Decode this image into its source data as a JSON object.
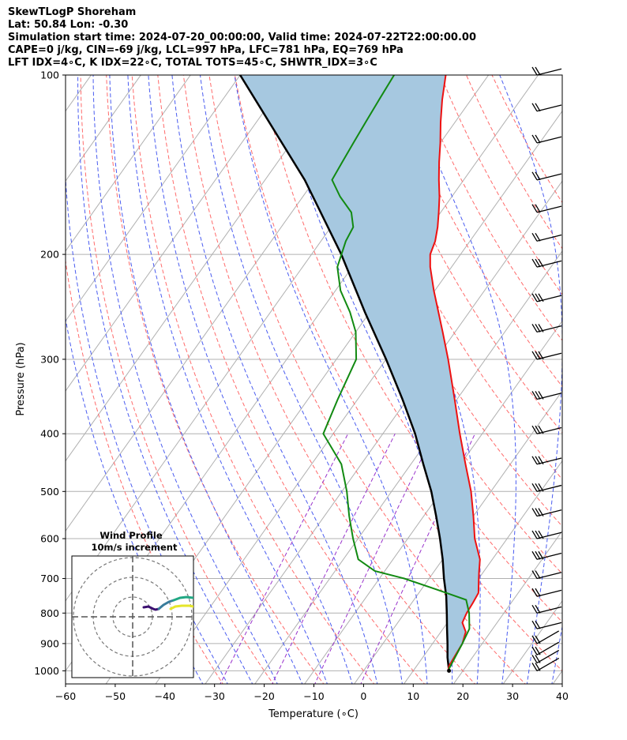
{
  "header": {
    "line1": "SkewTLogP Shoreham",
    "line2": "Lat: 50.84   Lon: -0.30",
    "line3": "Simulation start time: 2024-07-20_00:00:00, Valid time: 2024-07-22T22:00:00.00",
    "line4": "CAPE=0 j/kg, CIN=-69 j/kg, LCL=997 hPa, LFC=781 hPa, EQ=769 hPa",
    "line5": "LFT IDX=4∘C, K IDX=22∘C, TOTAL TOTS=45∘C, SHWTR_IDX=3∘C"
  },
  "chart_data": {
    "type": "skew-t",
    "xlabel": "Temperature (∘C)",
    "ylabel": "Pressure (hPa)",
    "xlim": [
      -60,
      40
    ],
    "ylim": [
      1050,
      100
    ],
    "y_scale": "log",
    "x_ticks": [
      -60,
      -50,
      -40,
      -30,
      -20,
      -10,
      0,
      10,
      20,
      30,
      40
    ],
    "x_tick_labels": [
      "−60",
      "−50",
      "−40",
      "−30",
      "−20",
      "−10",
      "0",
      "10",
      "20",
      "30",
      "40"
    ],
    "y_ticks": [
      100,
      200,
      300,
      400,
      500,
      600,
      700,
      800,
      900,
      1000
    ],
    "grid": true,
    "colors": {
      "temperature": "#ee1111",
      "dewpoint": "#128a12",
      "parcel": "#000000",
      "cape_fill": "#a6c8e0",
      "dry_adiabat": "#ff6b6b",
      "moist_adiabat": "#4a5cf0",
      "mixing_ratio": "#9933cc",
      "isotherm": "#b0b0b0"
    },
    "temperature_profile": {
      "pressure": [
        1000,
        980,
        950,
        900,
        860,
        830,
        800,
        770,
        740,
        700,
        680,
        650,
        600,
        550,
        500,
        450,
        400,
        350,
        300,
        270,
        250,
        230,
        210,
        200,
        190,
        180,
        170,
        160,
        150,
        140,
        130,
        120,
        110,
        100
      ],
      "temperature": [
        17.0,
        16.5,
        16.3,
        16.0,
        15.0,
        13.0,
        12.5,
        12.3,
        12.0,
        10.0,
        9.0,
        7.5,
        3.5,
        0.0,
        -4.0,
        -9.0,
        -14.5,
        -20.5,
        -27.5,
        -32.5,
        -36.2,
        -40.2,
        -44.3,
        -46.1,
        -47.0,
        -48.5,
        -50.4,
        -52.5,
        -55.0,
        -57.5,
        -60.0,
        -62.9,
        -65.8,
        -68.6
      ]
    },
    "dewpoint_profile": {
      "pressure": [
        1000,
        950,
        900,
        850,
        800,
        760,
        730,
        700,
        680,
        650,
        600,
        550,
        500,
        450,
        400,
        350,
        300,
        270,
        250,
        230,
        210,
        190,
        180,
        170,
        160,
        150,
        140,
        130,
        120,
        110,
        100
      ],
      "dewpoint": [
        17.0,
        16.5,
        16.0,
        15.3,
        13.0,
        10.5,
        3.0,
        -5.0,
        -12.0,
        -17.0,
        -21.0,
        -25.0,
        -29.0,
        -34.0,
        -42.0,
        -44.0,
        -46.0,
        -50.0,
        -54.0,
        -59.0,
        -63.0,
        -65.0,
        -65.5,
        -68.0,
        -72.5,
        -76.5,
        -77.0,
        -77.5,
        -78.0,
        -78.5,
        -79.0
      ]
    },
    "parcel_profile": {
      "pressure": [
        1000,
        950,
        900,
        850,
        800,
        750,
        700,
        650,
        600,
        550,
        500,
        450,
        400,
        350,
        300,
        250,
        200,
        150,
        100
      ],
      "temperature": [
        17.2,
        15.0,
        13.0,
        10.8,
        8.5,
        6.0,
        3.0,
        0.0,
        -3.5,
        -7.5,
        -12.0,
        -17.5,
        -23.5,
        -31.0,
        -40.0,
        -51.0,
        -64.0,
        -82.0,
        -110.0
      ]
    },
    "wind_barbs": {
      "pressure": [
        1000,
        970,
        940,
        900,
        850,
        800,
        750,
        700,
        650,
        600,
        550,
        500,
        450,
        400,
        350,
        300,
        270,
        240,
        210,
        190,
        170,
        150,
        130,
        115,
        100
      ],
      "note": "barbs plotted at right edge"
    },
    "inset": {
      "title_line1": "Wind Profile",
      "title_line2": "10m/s increment",
      "rings": [
        1,
        2,
        3
      ],
      "trace_colors": [
        "#3b0f70",
        "#3a7d9c",
        "#22a884",
        "#e6e62a"
      ]
    }
  }
}
